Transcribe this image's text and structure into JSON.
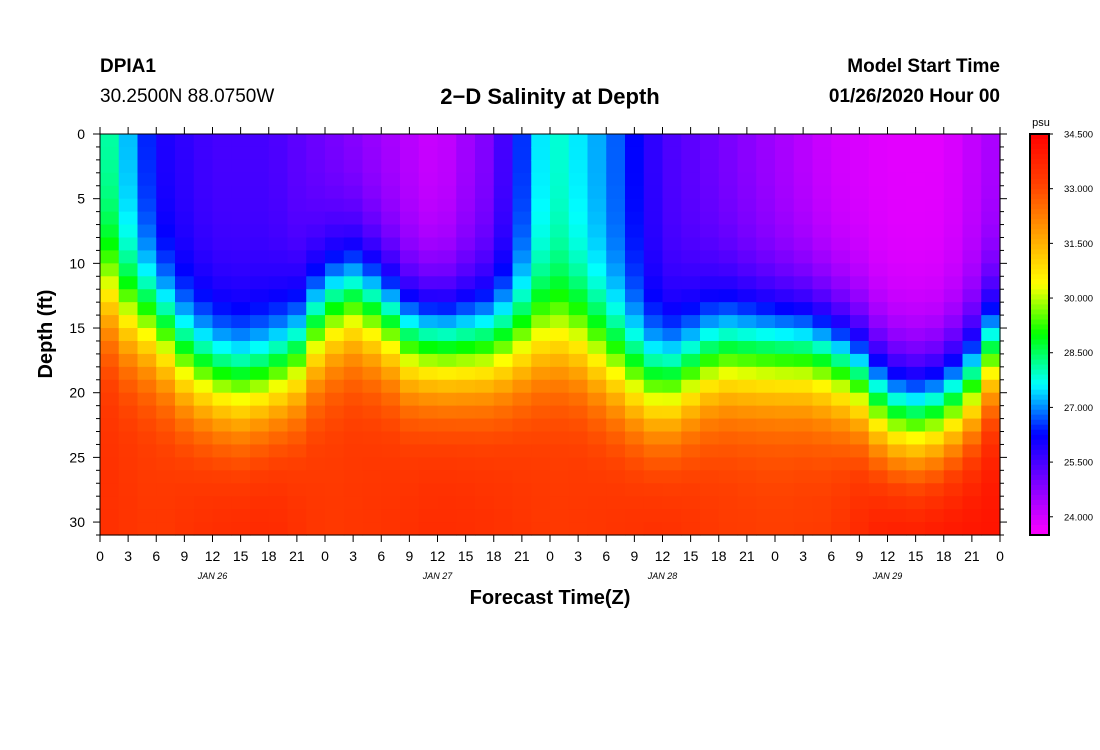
{
  "header": {
    "station": "DPIA1",
    "coords": "30.2500N 88.0750W",
    "title": "2−D Salinity at Depth",
    "start_label": "Model Start Time",
    "start_value": "01/26/2020 Hour 00"
  },
  "chart_data": {
    "type": "heatmap",
    "title": "2−D Salinity at Depth",
    "xlabel": "Forecast Time(Z)",
    "ylabel": "Depth (ft)",
    "x_hours_range": [
      0,
      96
    ],
    "ylim": [
      0,
      31
    ],
    "y_ticks": [
      0,
      5,
      10,
      15,
      20,
      25,
      30
    ],
    "x_tick_labels": [
      "0",
      "3",
      "6",
      "9",
      "12",
      "15",
      "18",
      "21",
      "0",
      "3",
      "6",
      "9",
      "12",
      "15",
      "18",
      "21",
      "0",
      "3",
      "6",
      "9",
      "12",
      "15",
      "18",
      "21",
      "0",
      "3",
      "6",
      "9",
      "12",
      "15",
      "18",
      "21",
      "0"
    ],
    "day_labels": [
      {
        "text": "JAN 26",
        "hour": 12
      },
      {
        "text": "JAN 27",
        "hour": 36
      },
      {
        "text": "JAN 28",
        "hour": 60
      },
      {
        "text": "JAN 29",
        "hour": 84
      }
    ],
    "colorbar": {
      "unit": "psu",
      "min": 23.5,
      "max": 34.5,
      "tick_values": [
        34.5,
        33.0,
        31.5,
        30.0,
        28.5,
        27.0,
        25.5,
        24.0
      ],
      "tick_labels": [
        "34.500",
        "33.000",
        "31.500",
        "30.000",
        "28.500",
        "27.000",
        "25.500",
        "24.000"
      ],
      "colors": [
        "#ff00ff",
        "#8000ff",
        "#0000ff",
        "#00ffff",
        "#00ff00",
        "#ffff00",
        "#ffa000",
        "#ff4000",
        "#ff0000"
      ]
    },
    "halocline_depth_ft": {
      "hours": [
        0,
        3,
        6,
        9,
        12,
        15,
        18,
        21,
        24,
        27,
        30,
        33,
        36,
        39,
        42,
        45,
        48,
        51,
        54,
        57,
        60,
        63,
        66,
        69,
        72,
        75,
        78,
        81,
        84,
        87,
        90,
        93,
        96
      ],
      "depths": [
        12,
        14,
        15,
        17.5,
        19,
        19.5,
        19,
        17.5,
        14,
        13,
        14,
        16,
        16.5,
        16.5,
        16.5,
        16,
        15.5,
        16,
        17.5,
        19,
        20,
        18.5,
        17,
        17,
        17,
        17,
        17.5,
        19,
        21.5,
        22,
        21.5,
        19.5,
        16
      ]
    },
    "upper_layer_salinity": {
      "hours": [
        0,
        6,
        12,
        18,
        24,
        30,
        36,
        42,
        48,
        54,
        60,
        66,
        72,
        78,
        84,
        90,
        96
      ],
      "values": [
        28.5,
        26,
        25.5,
        25.5,
        25,
        24.5,
        24,
        25,
        28,
        27,
        25.5,
        25,
        24.5,
        24,
        23.8,
        23.8,
        24.5
      ]
    },
    "bottom_salinity": {
      "hours": [
        0,
        6,
        12,
        18,
        24,
        30,
        36,
        42,
        48,
        54,
        60,
        66,
        72,
        78,
        84,
        90,
        96
      ],
      "values": [
        33.5,
        33.3,
        33.6,
        33.7,
        33.3,
        33.4,
        33.6,
        33.5,
        33.3,
        33.4,
        33.6,
        33.3,
        33.2,
        33.3,
        34.1,
        34.2,
        34.1
      ]
    }
  }
}
